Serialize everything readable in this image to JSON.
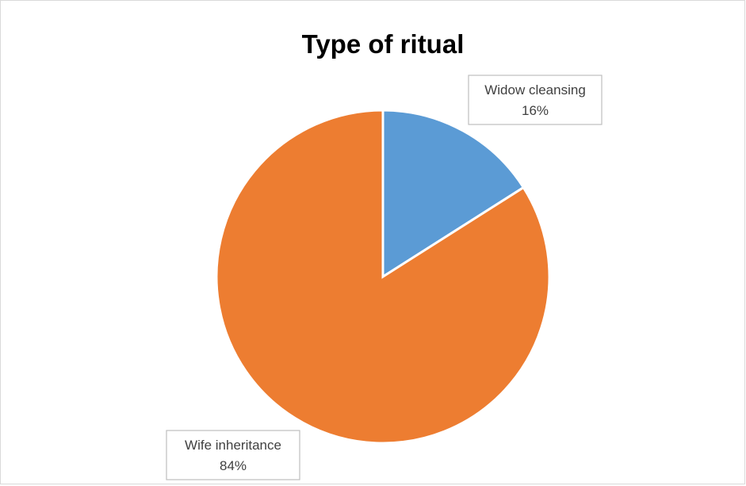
{
  "chart_data": {
    "type": "pie",
    "title": "Type of ritual",
    "slices": [
      {
        "label": "Widow cleansing",
        "value": 16,
        "value_label": "16%",
        "color": "#5B9BD5"
      },
      {
        "label": "Wife inheritance",
        "value": 84,
        "value_label": "84%",
        "color": "#ED7D31"
      }
    ],
    "start_angle_deg": 0,
    "direction": "clockwise",
    "legend": "none",
    "data_labels": "callout boxes with category name and percentage"
  }
}
